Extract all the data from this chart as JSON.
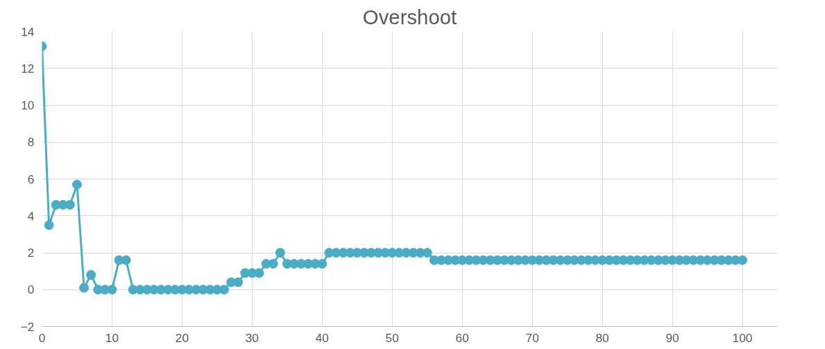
{
  "chart_data": {
    "type": "line",
    "title": "Overshoot",
    "x": [
      0,
      1,
      2,
      3,
      4,
      5,
      6,
      7,
      8,
      9,
      10,
      11,
      12,
      13,
      14,
      15,
      16,
      17,
      18,
      19,
      20,
      21,
      22,
      23,
      24,
      25,
      26,
      27,
      28,
      29,
      30,
      31,
      32,
      33,
      34,
      35,
      36,
      37,
      38,
      39,
      40,
      41,
      42,
      43,
      44,
      45,
      46,
      47,
      48,
      49,
      50,
      51,
      52,
      53,
      54,
      55,
      56,
      57,
      58,
      59,
      60,
      61,
      62,
      63,
      64,
      65,
      66,
      67,
      68,
      69,
      70,
      71,
      72,
      73,
      74,
      75,
      76,
      77,
      78,
      79,
      80,
      81,
      82,
      83,
      84,
      85,
      86,
      87,
      88,
      89,
      90,
      91,
      92,
      93,
      94,
      95,
      96,
      97,
      98,
      99,
      100
    ],
    "series": [
      {
        "color": "#4bacc6",
        "values": [
          13.2,
          3.5,
          4.6,
          4.6,
          4.6,
          5.7,
          0.1,
          0.8,
          0,
          0,
          0,
          1.6,
          1.6,
          0,
          0,
          0,
          0,
          0,
          0,
          0,
          0,
          0,
          0,
          0,
          0,
          0,
          0,
          0.4,
          0.4,
          0.9,
          0.9,
          0.9,
          1.4,
          1.4,
          2.0,
          1.4,
          1.4,
          1.4,
          1.4,
          1.4,
          1.4,
          2.0,
          2.0,
          2.0,
          2.0,
          2.0,
          2.0,
          2.0,
          2.0,
          2.0,
          2.0,
          2.0,
          2.0,
          2.0,
          2.0,
          2.0,
          1.6,
          1.6,
          1.6,
          1.6,
          1.6,
          1.6,
          1.6,
          1.6,
          1.6,
          1.6,
          1.6,
          1.6,
          1.6,
          1.6,
          1.6,
          1.6,
          1.6,
          1.6,
          1.6,
          1.6,
          1.6,
          1.6,
          1.6,
          1.6,
          1.6,
          1.6,
          1.6,
          1.6,
          1.6,
          1.6,
          1.6,
          1.6,
          1.6,
          1.6,
          1.6,
          1.6,
          1.6,
          1.6,
          1.6,
          1.6,
          1.6,
          1.6,
          1.6,
          1.6,
          1.6
        ]
      }
    ],
    "xlim": [
      0,
      105
    ],
    "xticks": [
      0,
      10,
      20,
      30,
      40,
      50,
      60,
      70,
      80,
      90,
      100
    ],
    "ylim": [
      -2,
      14
    ],
    "yticks": [
      -2,
      0,
      2,
      4,
      6,
      8,
      10,
      12,
      14
    ],
    "grid": true,
    "marker": "circle",
    "line_style": "solid"
  }
}
